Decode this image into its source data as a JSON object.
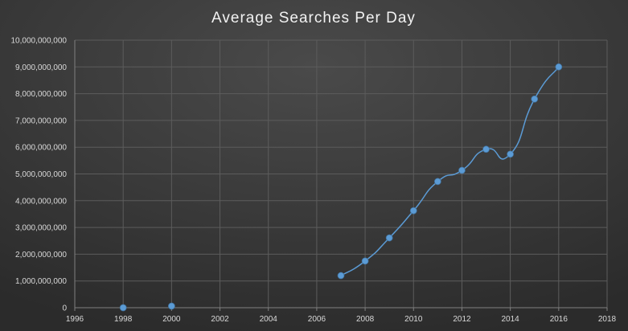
{
  "chart_data": {
    "type": "scatter",
    "title": "Average Searches Per Day",
    "xlabel": "",
    "ylabel": "",
    "xlim": [
      1996,
      2018
    ],
    "ylim": [
      0,
      10000000000
    ],
    "x_ticks": [
      1996,
      1998,
      2000,
      2002,
      2004,
      2006,
      2008,
      2010,
      2012,
      2014,
      2016,
      2018
    ],
    "y_ticks": [
      0,
      1000000000,
      2000000000,
      3000000000,
      4000000000,
      5000000000,
      6000000000,
      7000000000,
      8000000000,
      9000000000,
      10000000000
    ],
    "x_tick_labels": [
      "1996",
      "1998",
      "2000",
      "2002",
      "2004",
      "2006",
      "2008",
      "2010",
      "2012",
      "2014",
      "2016",
      "2018"
    ],
    "y_tick_labels": [
      "0",
      "1,000,000,000",
      "2,000,000,000",
      "3,000,000,000",
      "4,000,000,000",
      "5,000,000,000",
      "6,000,000,000",
      "7,000,000,000",
      "8,000,000,000",
      "9,000,000,000",
      "10,000,000,000"
    ],
    "grid": true,
    "legend": "none",
    "series": [
      {
        "points": [
          {
            "x": 1998,
            "y": 9800
          },
          {
            "x": 2000,
            "y": 60000000
          },
          {
            "x": 2007,
            "y": 1200000000
          },
          {
            "x": 2008,
            "y": 1745000000
          },
          {
            "x": 2009,
            "y": 2610000000
          },
          {
            "x": 2010,
            "y": 3627000000
          },
          {
            "x": 2011,
            "y": 4717000000
          },
          {
            "x": 2012,
            "y": 5134000000
          },
          {
            "x": 2013,
            "y": 5922000000
          },
          {
            "x": 2014,
            "y": 5740000000
          },
          {
            "x": 2015,
            "y": 7800000000
          },
          {
            "x": 2016,
            "y": 9000000000
          }
        ],
        "connected_from_index": 2
      }
    ],
    "colors": {
      "background_top": "#4a4a4a",
      "background_bottom": "#2b2b2b",
      "gridline": "#5c5c5c",
      "axis_line": "#808080",
      "text": "#d9d9d9",
      "title": "#f2f2f2",
      "series": "#5b9bd5",
      "marker_stroke": "#41719c"
    }
  }
}
